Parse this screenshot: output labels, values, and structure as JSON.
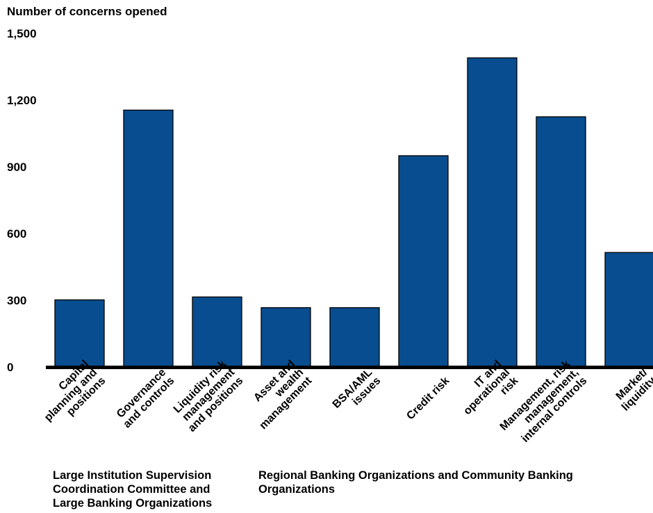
{
  "chart_data": {
    "type": "bar",
    "ylabel": "Number of concerns opened",
    "ylim": [
      0,
      1500
    ],
    "yticks": [
      0,
      300,
      600,
      900,
      1200,
      1500
    ],
    "ytick_labels": [
      "0",
      "300",
      "600",
      "900",
      "1,200",
      "1,500"
    ],
    "bar_color": "#084d8f",
    "categories": [
      [
        "Capital",
        "planning and",
        "positions"
      ],
      [
        "Governance",
        "and controls"
      ],
      [
        "Liquidity risk",
        "management",
        "and positions"
      ],
      [
        "Asset and",
        "wealth",
        "management"
      ],
      [
        "BSA/AML",
        "issues"
      ],
      [
        "Credit risk"
      ],
      [
        "IT and",
        "operational",
        "risk"
      ],
      [
        "Management, risk",
        "management,",
        "internal controls"
      ],
      [
        "Market/",
        "liquidity"
      ]
    ],
    "values": [
      302,
      1155,
      315,
      267,
      267,
      950,
      1390,
      1125,
      515
    ],
    "groups": [
      {
        "label": "Large Institution Supervision Coordination Committee and Large Banking Organizations",
        "categories": [
          0,
          1,
          2
        ]
      },
      {
        "label": "Regional Banking Organizations and Community Banking Organizations",
        "categories": [
          3,
          4,
          5,
          6,
          7,
          8
        ]
      }
    ]
  }
}
